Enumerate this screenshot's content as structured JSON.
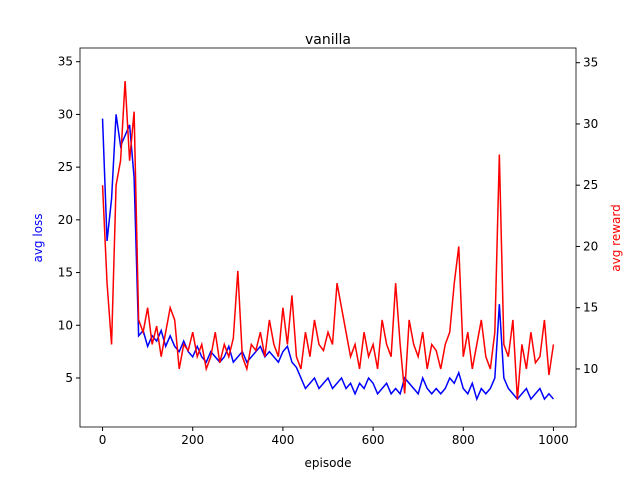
{
  "chart_data": {
    "type": "line",
    "title": "vanilla",
    "x_label": "episode",
    "y_label": "avg loss",
    "y2_label": "avg reward",
    "x": [
      0,
      10,
      20,
      30,
      40,
      50,
      60,
      70,
      80,
      90,
      100,
      110,
      120,
      130,
      140,
      150,
      160,
      170,
      180,
      190,
      200,
      210,
      220,
      230,
      240,
      250,
      260,
      270,
      280,
      290,
      300,
      310,
      320,
      330,
      340,
      350,
      360,
      370,
      380,
      390,
      400,
      410,
      420,
      430,
      440,
      450,
      460,
      470,
      480,
      490,
      500,
      510,
      520,
      530,
      540,
      550,
      560,
      570,
      580,
      590,
      600,
      610,
      620,
      630,
      640,
      650,
      660,
      670,
      680,
      690,
      700,
      710,
      720,
      730,
      740,
      750,
      760,
      770,
      780,
      790,
      800,
      810,
      820,
      830,
      840,
      850,
      860,
      870,
      880,
      890,
      900,
      910,
      920,
      930,
      940,
      950,
      960,
      970,
      980,
      990,
      1000
    ],
    "series": [
      {
        "name": "avg loss",
        "color": "#0000ff",
        "values": [
          29.6,
          18,
          22,
          30,
          27,
          28,
          29,
          24,
          9,
          9.5,
          8,
          9,
          8.5,
          9.5,
          8,
          9,
          8,
          7.5,
          8.5,
          7.5,
          7,
          8,
          7,
          6.5,
          7.5,
          7,
          6.5,
          7,
          8,
          6.5,
          7,
          7.5,
          6.5,
          7,
          7.5,
          8,
          7,
          7.5,
          7,
          6.5,
          7.5,
          8,
          6.5,
          6,
          5,
          4,
          4.5,
          5,
          4,
          4.5,
          5,
          4,
          4.5,
          5,
          4,
          4.5,
          3.5,
          4.5,
          4,
          5,
          4.5,
          3.5,
          4,
          4.5,
          3.5,
          4,
          3.5,
          5,
          4.5,
          4,
          3.5,
          5,
          4,
          3.5,
          4,
          3.5,
          4,
          5,
          4.5,
          5.5,
          4,
          3.5,
          4.5,
          3,
          4,
          3.5,
          4,
          5,
          12,
          5,
          4,
          3.5,
          3,
          3.5,
          4,
          3,
          3.5,
          4,
          3,
          3.5,
          3
        ]
      },
      {
        "name": "avg reward",
        "color": "#ff0000",
        "axis": "y2",
        "values": [
          25,
          17,
          12,
          25,
          27,
          33.5,
          27,
          31,
          14,
          13,
          15,
          12,
          13.5,
          11,
          13,
          15,
          14,
          10,
          12,
          11.5,
          13,
          11,
          12,
          10,
          11,
          13,
          10.5,
          12,
          11,
          12.5,
          18,
          11,
          10,
          12,
          11.5,
          13,
          11,
          14,
          12,
          11,
          15,
          12,
          16,
          11,
          10,
          13,
          11,
          14,
          12,
          11.5,
          13,
          12,
          17,
          15,
          13,
          11,
          12,
          10,
          13,
          11,
          12,
          10,
          14,
          12,
          11,
          17,
          12,
          8,
          14,
          12,
          11,
          13,
          10,
          12,
          11.5,
          10,
          12,
          13,
          17,
          20,
          11,
          13,
          10,
          12,
          14,
          11,
          10,
          13,
          27.5,
          12,
          11,
          14,
          7.5,
          12,
          10,
          13,
          10.5,
          11,
          14,
          9.5,
          12
        ]
      }
    ],
    "xlim": [
      -50,
      1050
    ],
    "ylim": [
      0.35,
      36.3
    ],
    "y2lim": [
      5.26,
      36.2
    ],
    "xticks": [
      0,
      200,
      400,
      600,
      800,
      1000
    ],
    "yticks": [
      5,
      10,
      15,
      20,
      25,
      30,
      35
    ],
    "y2ticks": [
      10,
      15,
      20,
      25,
      30,
      35
    ]
  }
}
